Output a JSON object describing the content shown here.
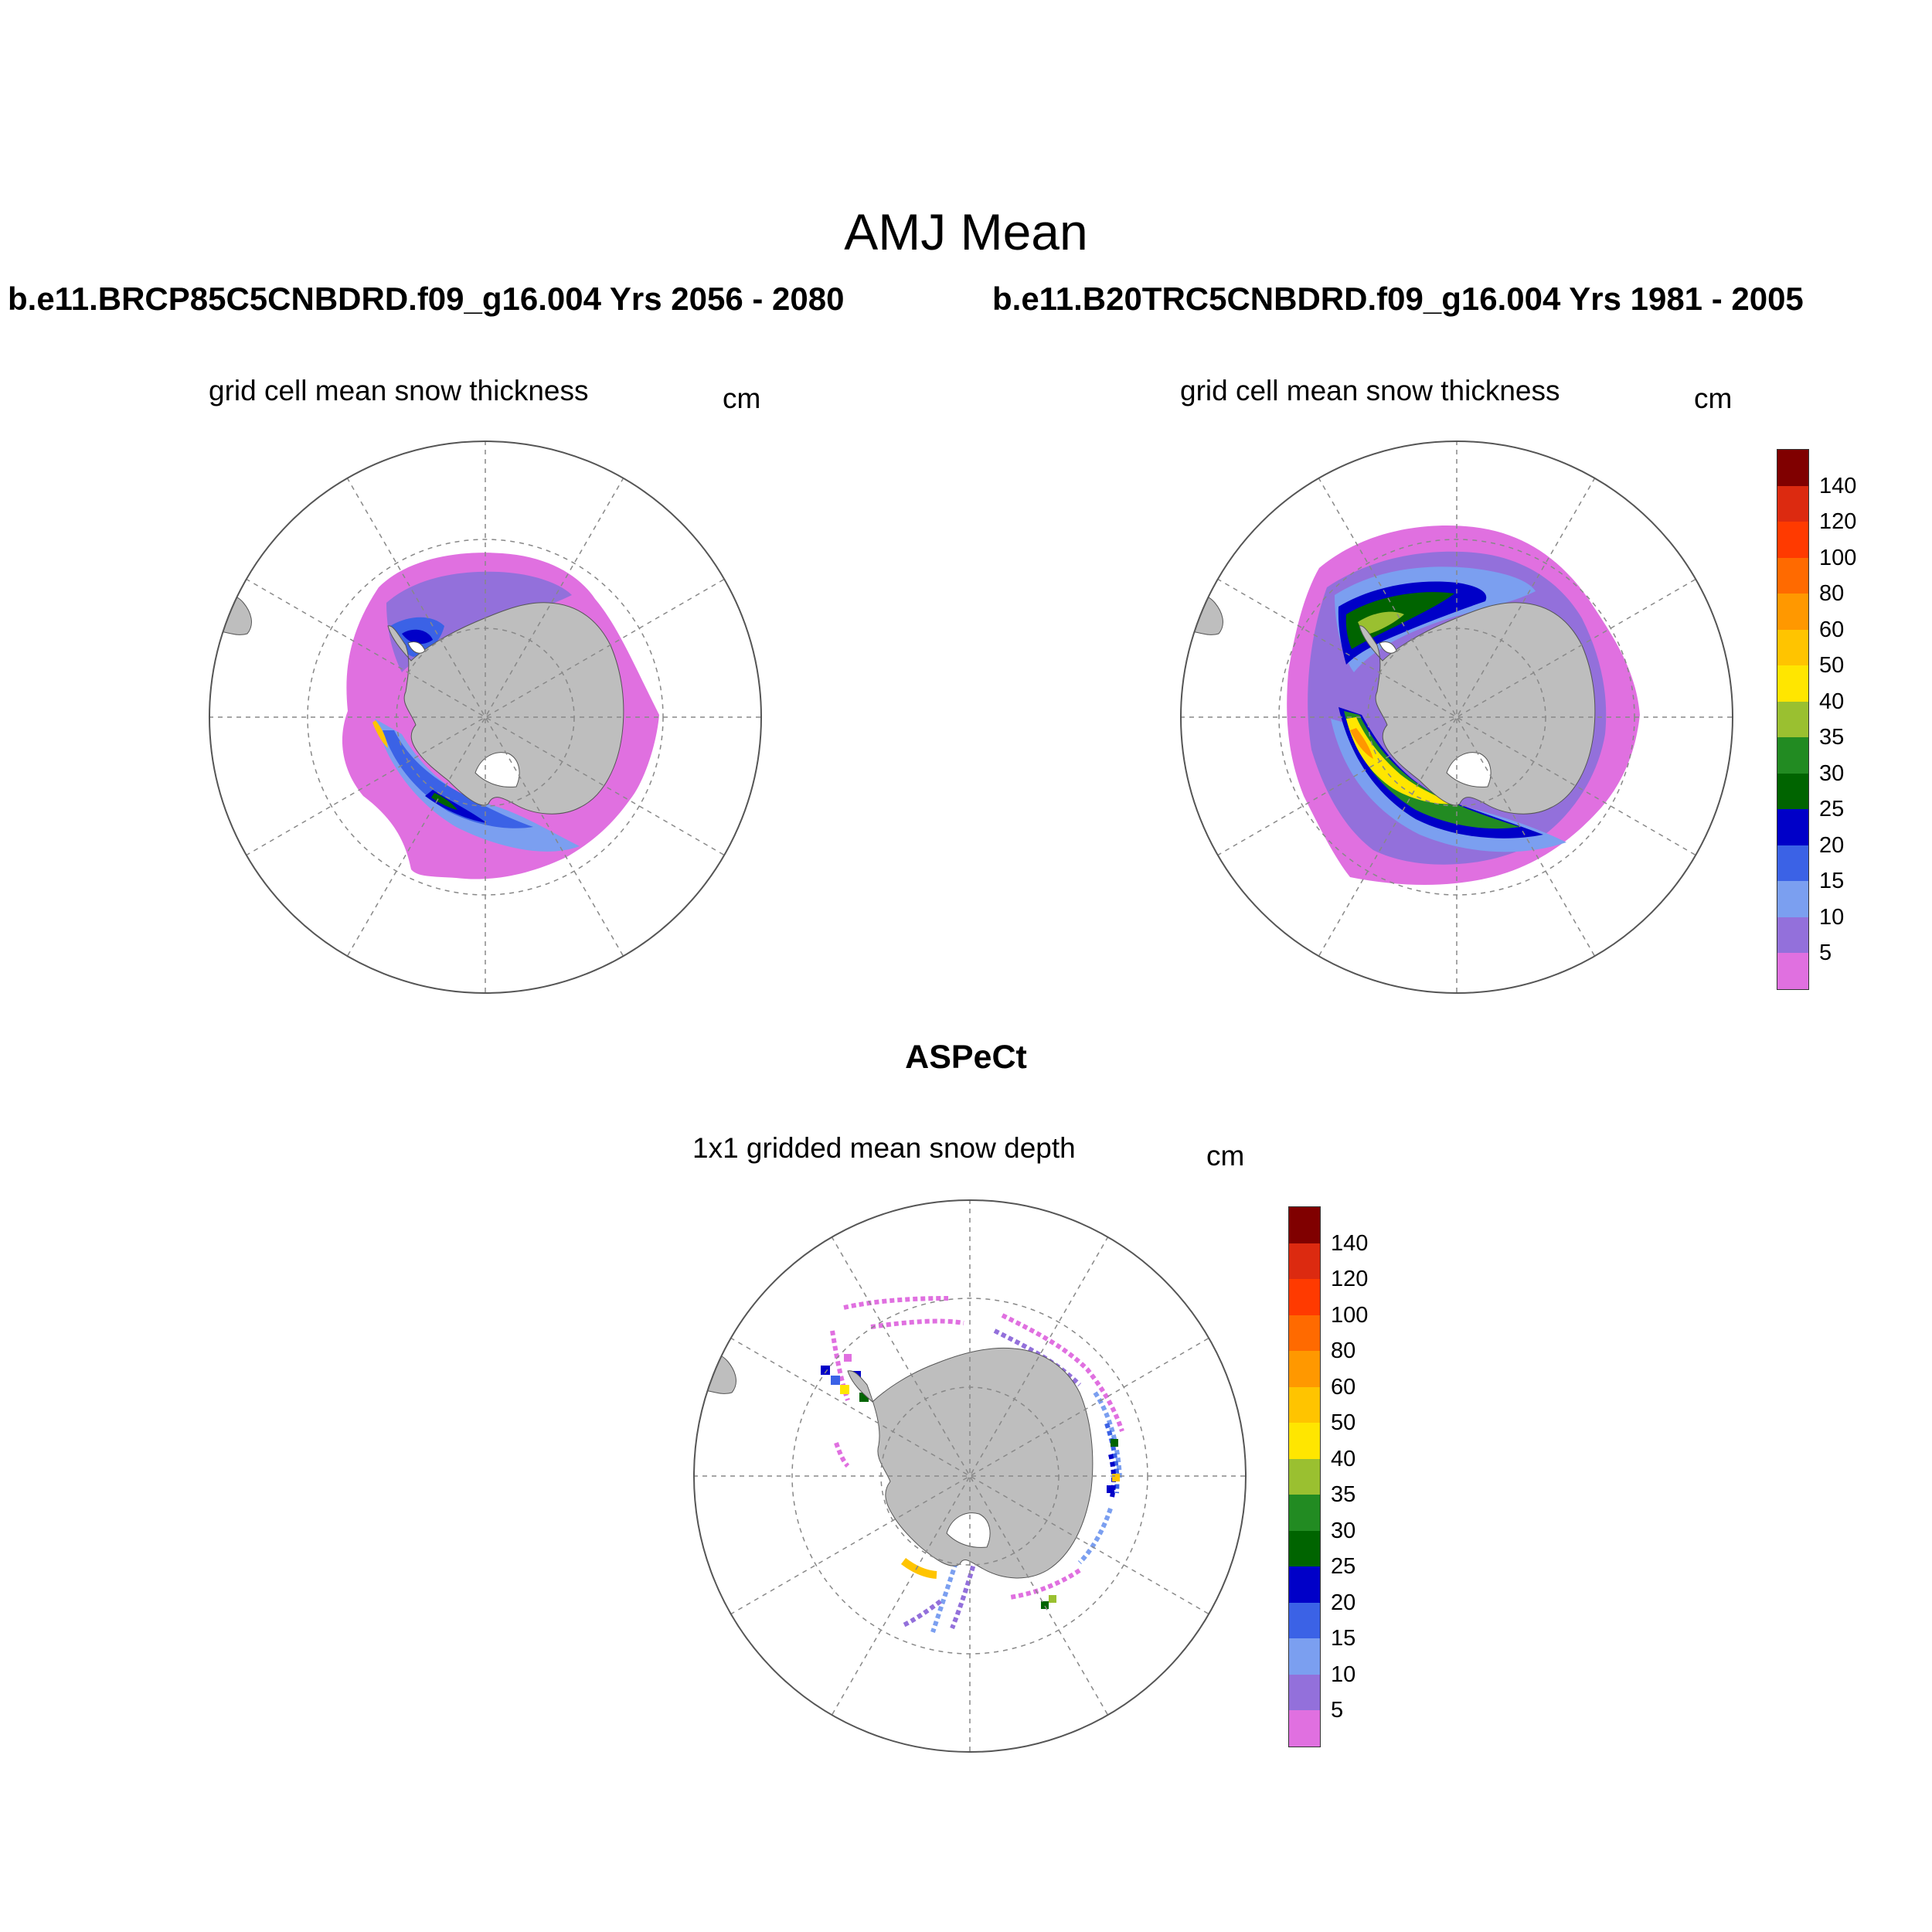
{
  "figure": {
    "title": "AMJ Mean",
    "left_run": "b.e11.BRCP85C5CNBDRD.f09_g16.004  Yrs 2056 - 2080",
    "right_run": "b.e11.B20TRC5CNBDRD.f09_g16.004  Yrs 1981 - 2005",
    "obs_label": "ASPeCt"
  },
  "panels": [
    {
      "id": "rcp85",
      "title": "grid cell mean snow thickness",
      "units": "cm"
    },
    {
      "id": "historical",
      "title": "grid cell mean snow thickness",
      "units": "cm"
    },
    {
      "id": "aspect",
      "title": "1x1 gridded mean snow depth",
      "units": "cm"
    }
  ],
  "colorbar": {
    "labels": [
      "140",
      "120",
      "100",
      "80",
      "60",
      "50",
      "40",
      "35",
      "30",
      "25",
      "20",
      "15",
      "10",
      "5"
    ],
    "levels": [
      5,
      10,
      15,
      20,
      25,
      30,
      35,
      40,
      50,
      60,
      80,
      100,
      120,
      140
    ],
    "colors_low_to_high": [
      "#e070e0",
      "#9370db",
      "#7b9ff0",
      "#3b62e6",
      "#0000c8",
      "#006400",
      "#228b22",
      "#9ac030",
      "#ffe600",
      "#ffc400",
      "#ff9800",
      "#ff6a00",
      "#ff3a00",
      "#dc2a10",
      "#800000"
    ]
  },
  "map": {
    "projection": "South polar stereographic",
    "land_color": "#bebebe",
    "graticule": "dashed"
  }
}
